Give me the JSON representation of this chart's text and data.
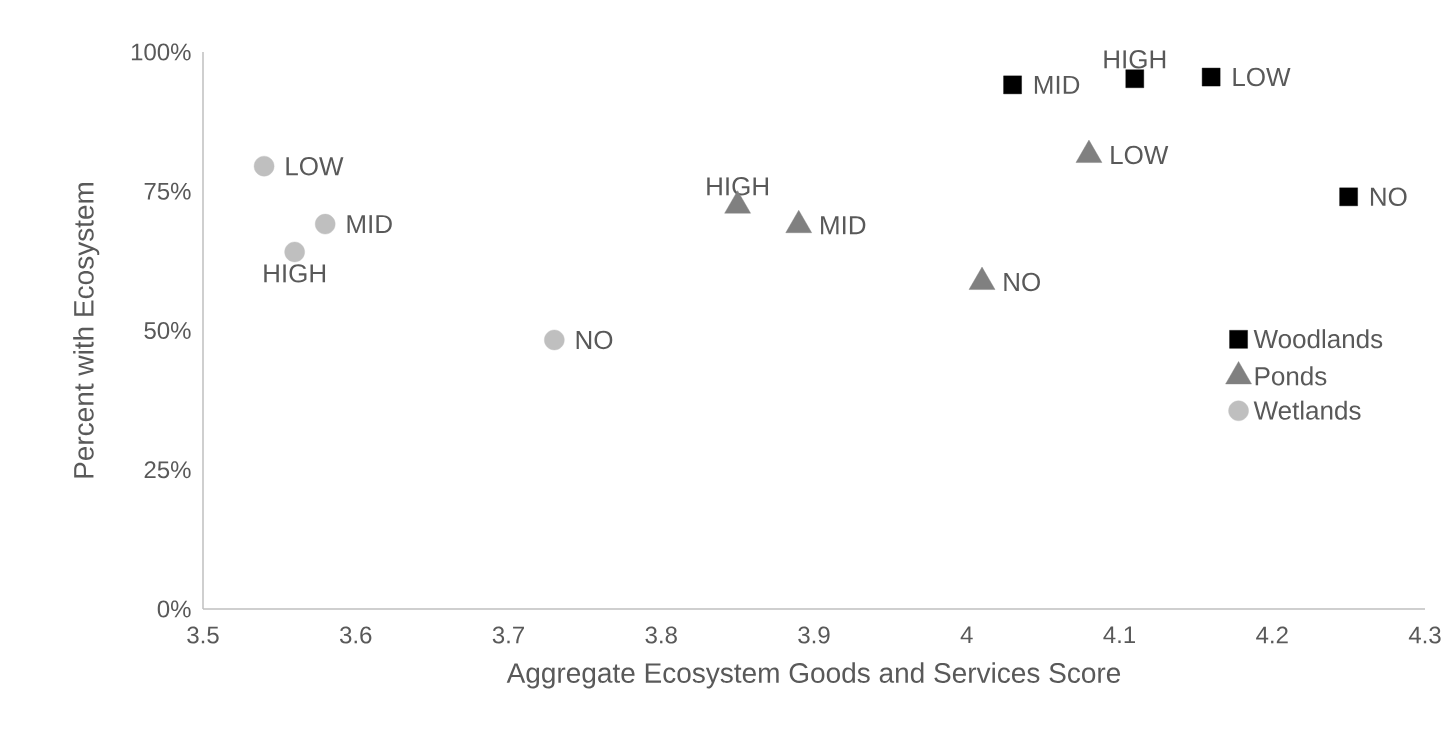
{
  "chart_data": {
    "type": "scatter",
    "xlabel": "Aggregate Ecosystem Goods and Services Score",
    "ylabel": "Percent  with Ecosystem",
    "series": [
      {
        "name": "Woodlands",
        "color": "#000000",
        "marker": "square",
        "x": [
          4.25,
          4.16,
          4.03,
          4.11
        ],
        "values": [
          74,
          95.5,
          94.1,
          95.2
        ],
        "value_labels": [
          "NO",
          "LOW",
          "MID",
          "HIGH"
        ]
      },
      {
        "name": "Ponds",
        "color": "#808080",
        "marker": "triangle",
        "x": [
          4.01,
          4.08,
          3.89,
          3.85
        ],
        "values": [
          58.7,
          81.5,
          68.9,
          72.4
        ],
        "value_labels": [
          "NO",
          "LOW",
          "MID",
          "HIGH"
        ]
      },
      {
        "name": "Wetlands",
        "color": "#bfbfbf",
        "marker": "circle",
        "x": [
          3.73,
          3.54,
          3.58,
          3.56
        ],
        "values": [
          48.3,
          79.5,
          69.1,
          64.1
        ],
        "value_labels": [
          "NO",
          "LOW",
          "MID",
          "HIGH"
        ]
      }
    ],
    "xlim": [
      3.5,
      4.3
    ],
    "xticks": [
      3.5,
      3.6,
      3.7,
      3.8,
      3.9,
      {
        "value": 4,
        "label": "4"
      },
      4.1,
      4.2,
      4.3
    ],
    "ylim": [
      0,
      100
    ],
    "yticks": [
      {
        "value": 0,
        "label": "0%"
      },
      {
        "value": 25,
        "label": "25%"
      },
      {
        "value": 50,
        "label": "50%"
      },
      {
        "value": 75,
        "label": "75%"
      },
      {
        "value": 100,
        "label": "100%"
      }
    ],
    "grid": false,
    "legend": "right"
  }
}
